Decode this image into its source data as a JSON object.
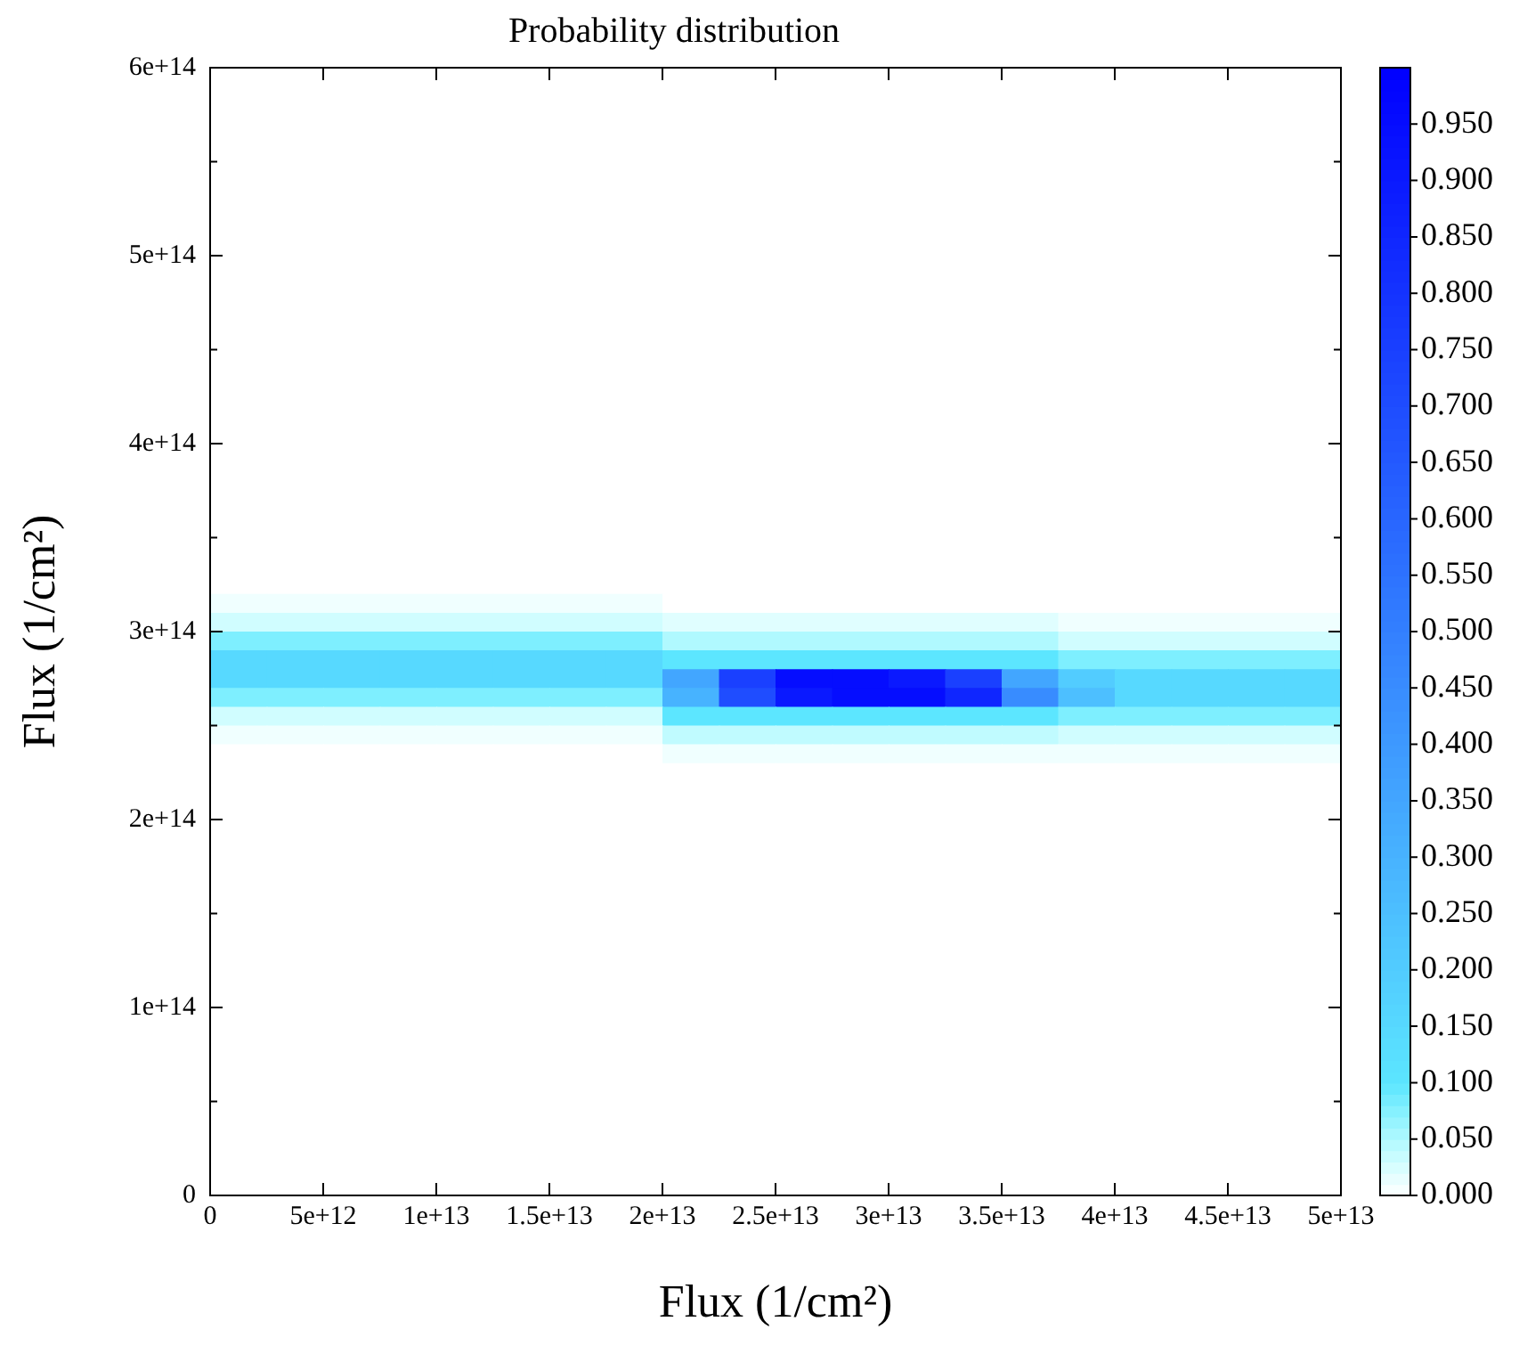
{
  "chart_data": {
    "type": "heatmap",
    "title": "Probability distribution",
    "xlabel": "Flux (1/cm²)",
    "ylabel": "Flux (1/cm²)",
    "x": [
      1250000000000.0,
      3750000000000.0,
      6250000000000.0,
      8750000000000.0,
      11250000000000.0,
      13750000000000.0,
      16250000000000.0,
      18750000000000.0,
      21250000000000.0,
      23750000000000.0,
      26250000000000.0,
      28750000000000.0,
      31250000000000.0,
      33750000000000.0,
      36250000000000.0,
      38750000000000.0,
      41250000000000.0,
      43750000000000.0,
      46250000000000.0,
      48750000000000.0
    ],
    "xlim": [
      0,
      50000000000000.0
    ],
    "xticks": [
      {
        "value": 0,
        "label": "0"
      },
      {
        "value": 5000000000000.0,
        "label": "5e+12"
      },
      {
        "value": 10000000000000.0,
        "label": "1e+13"
      },
      {
        "value": 15000000000000.0,
        "label": "1.5e+13"
      },
      {
        "value": 20000000000000.0,
        "label": "2e+13"
      },
      {
        "value": 25000000000000.0,
        "label": "2.5e+13"
      },
      {
        "value": 30000000000000.0,
        "label": "3e+13"
      },
      {
        "value": 35000000000000.0,
        "label": "3.5e+13"
      },
      {
        "value": 40000000000000.0,
        "label": "4e+13"
      },
      {
        "value": 45000000000000.0,
        "label": "4.5e+13"
      },
      {
        "value": 50000000000000.0,
        "label": "5e+13"
      }
    ],
    "ylim": [
      0,
      600000000000000.0
    ],
    "yticks": [
      {
        "value": 0,
        "label": "0"
      },
      {
        "value": 50000000000000.0,
        "label": null
      },
      {
        "value": 100000000000000.0,
        "label": "1e+14"
      },
      {
        "value": 150000000000000.0,
        "label": null
      },
      {
        "value": 200000000000000.0,
        "label": "2e+14"
      },
      {
        "value": 250000000000000.0,
        "label": null
      },
      {
        "value": 300000000000000.0,
        "label": "3e+14"
      },
      {
        "value": 350000000000000.0,
        "label": null
      },
      {
        "value": 400000000000000.0,
        "label": "4e+14"
      },
      {
        "value": 450000000000000.0,
        "label": null
      },
      {
        "value": 500000000000000.0,
        "label": "5e+14"
      },
      {
        "value": 550000000000000.0,
        "label": null
      },
      {
        "value": 600000000000000.0,
        "label": "6e+14"
      }
    ],
    "clim": [
      0,
      1
    ],
    "cticks": [
      {
        "value": 0,
        "label": "0.000"
      },
      {
        "value": 0.05,
        "label": "0.050"
      },
      {
        "value": 0.1,
        "label": "0.100"
      },
      {
        "value": 0.15,
        "label": "0.150"
      },
      {
        "value": 0.2,
        "label": "0.200"
      },
      {
        "value": 0.25,
        "label": "0.250"
      },
      {
        "value": 0.3,
        "label": "0.300"
      },
      {
        "value": 0.35,
        "label": "0.350"
      },
      {
        "value": 0.4,
        "label": "0.400"
      },
      {
        "value": 0.45,
        "label": "0.450"
      },
      {
        "value": 0.5,
        "label": "0.500"
      },
      {
        "value": 0.55,
        "label": "0.550"
      },
      {
        "value": 0.6,
        "label": "0.600"
      },
      {
        "value": 0.65,
        "label": "0.650"
      },
      {
        "value": 0.7,
        "label": "0.700"
      },
      {
        "value": 0.75,
        "label": "0.750"
      },
      {
        "value": 0.8,
        "label": "0.800"
      },
      {
        "value": 0.85,
        "label": "0.850"
      },
      {
        "value": 0.9,
        "label": "0.900"
      },
      {
        "value": 0.95,
        "label": "0.950"
      }
    ],
    "legend": false,
    "cells": [
      [
        0,
        0,
        0,
        0,
        0,
        0,
        0,
        0,
        0,
        0,
        0,
        0,
        0,
        0,
        0,
        0,
        0,
        0,
        0,
        0
      ],
      [
        0,
        0,
        0,
        0,
        0,
        0,
        0,
        0,
        0,
        0,
        0,
        0,
        0,
        0,
        0,
        0,
        0,
        0,
        0,
        0
      ],
      [
        0,
        0,
        0,
        0,
        0,
        0,
        0,
        0,
        0,
        0,
        0,
        0,
        0,
        0,
        0,
        0,
        0,
        0,
        0,
        0
      ],
      [
        0,
        0,
        0,
        0,
        0,
        0,
        0,
        0,
        0,
        0,
        0,
        0,
        0,
        0,
        0,
        0,
        0,
        0,
        0,
        0
      ],
      [
        0,
        0,
        0,
        0,
        0,
        0,
        0,
        0,
        0,
        0,
        0,
        0,
        0,
        0,
        0,
        0,
        0,
        0,
        0,
        0
      ],
      [
        0,
        0,
        0,
        0,
        0,
        0,
        0,
        0,
        0,
        0,
        0,
        0,
        0,
        0,
        0,
        0,
        0,
        0,
        0,
        0
      ],
      [
        0,
        0,
        0,
        0,
        0,
        0,
        0,
        0,
        0,
        0,
        0,
        0,
        0,
        0,
        0,
        0,
        0,
        0,
        0,
        0
      ],
      [
        0,
        0,
        0,
        0,
        0,
        0,
        0,
        0,
        0,
        0,
        0,
        0,
        0,
        0,
        0,
        0,
        0,
        0,
        0,
        0
      ],
      [
        0,
        0,
        0,
        0,
        0,
        0,
        0,
        0,
        0,
        0,
        0,
        0,
        0,
        0,
        0,
        0,
        0,
        0,
        0,
        0
      ],
      [
        0,
        0,
        0,
        0,
        0,
        0,
        0,
        0,
        0,
        0,
        0,
        0,
        0,
        0,
        0,
        0,
        0,
        0,
        0,
        0
      ],
      [
        0,
        0,
        0,
        0,
        0,
        0,
        0,
        0,
        0,
        0,
        0,
        0,
        0,
        0,
        0,
        0,
        0,
        0,
        0,
        0
      ],
      [
        0,
        0,
        0,
        0,
        0,
        0,
        0,
        0,
        0,
        0,
        0,
        0,
        0,
        0,
        0,
        0,
        0,
        0,
        0,
        0
      ],
      [
        0,
        0,
        0,
        0,
        0,
        0,
        0,
        0,
        0,
        0,
        0,
        0,
        0,
        0,
        0,
        0,
        0,
        0,
        0,
        0
      ],
      [
        0,
        0,
        0,
        0,
        0,
        0,
        0,
        0,
        0,
        0,
        0,
        0,
        0,
        0,
        0,
        0,
        0,
        0,
        0,
        0
      ],
      [
        0,
        0,
        0,
        0,
        0,
        0,
        0,
        0,
        0,
        0,
        0,
        0,
        0,
        0,
        0,
        0,
        0,
        0,
        0,
        0
      ],
      [
        0,
        0,
        0,
        0,
        0,
        0,
        0,
        0,
        0,
        0,
        0,
        0,
        0,
        0,
        0,
        0,
        0,
        0,
        0,
        0
      ],
      [
        0,
        0,
        0,
        0,
        0,
        0,
        0,
        0,
        0,
        0,
        0,
        0,
        0,
        0,
        0,
        0,
        0,
        0,
        0,
        0
      ],
      [
        0,
        0,
        0,
        0,
        0,
        0,
        0,
        0,
        0,
        0,
        0,
        0,
        0,
        0,
        0,
        0,
        0,
        0,
        0,
        0
      ],
      [
        0,
        0,
        0,
        0,
        0,
        0,
        0,
        0,
        0,
        0,
        0,
        0,
        0,
        0,
        0,
        0,
        0,
        0,
        0,
        0
      ],
      [
        0,
        0,
        0,
        0,
        0,
        0,
        0,
        0,
        0,
        0,
        0,
        0,
        0,
        0,
        0,
        0,
        0,
        0,
        0,
        0
      ],
      [
        0,
        0,
        0,
        0,
        0,
        0,
        0,
        0,
        0,
        0,
        0,
        0,
        0,
        0,
        0,
        0,
        0,
        0,
        0,
        0
      ],
      [
        0,
        0,
        0,
        0,
        0,
        0,
        0,
        0,
        0,
        0,
        0,
        0,
        0,
        0,
        0,
        0,
        0,
        0,
        0,
        0
      ],
      [
        0,
        0,
        0,
        0,
        0,
        0,
        0,
        0,
        0,
        0,
        0,
        0,
        0,
        0,
        0,
        0,
        0,
        0,
        0,
        0
      ],
      [
        0,
        0,
        0,
        0,
        0,
        0,
        0,
        0,
        0,
        0,
        0,
        0,
        0,
        0,
        0,
        0,
        0,
        0,
        0,
        0
      ],
      [
        0,
        0,
        0,
        0,
        0,
        0,
        0,
        0,
        0,
        0,
        0,
        0,
        0,
        0,
        0,
        0,
        0,
        0,
        0,
        0
      ],
      [
        0,
        0,
        0,
        0,
        0,
        0,
        0,
        0,
        0,
        0,
        0,
        0,
        0,
        0,
        0,
        0,
        0,
        0,
        0,
        0
      ],
      [
        0,
        0,
        0,
        0,
        0,
        0,
        0,
        0,
        0,
        0,
        0,
        0,
        0,
        0,
        0,
        0,
        0,
        0,
        0,
        0
      ],
      [
        0,
        0,
        0,
        0,
        0,
        0,
        0,
        0,
        0,
        0,
        0,
        0,
        0,
        0,
        0,
        0,
        0,
        0,
        0,
        0
      ],
      [
        0.01,
        0.01,
        0.01,
        0.01,
        0.01,
        0.01,
        0.01,
        0.01,
        0,
        0,
        0,
        0,
        0,
        0,
        0,
        0,
        0,
        0,
        0,
        0
      ],
      [
        0.03,
        0.03,
        0.03,
        0.03,
        0.03,
        0.03,
        0.03,
        0.03,
        0.02,
        0.02,
        0.02,
        0.02,
        0.02,
        0.02,
        0.02,
        0.01,
        0.01,
        0.01,
        0.01,
        0.01
      ],
      [
        0.08,
        0.08,
        0.08,
        0.08,
        0.08,
        0.08,
        0.08,
        0.08,
        0.05,
        0.05,
        0.05,
        0.05,
        0.05,
        0.05,
        0.05,
        0.03,
        0.03,
        0.03,
        0.03,
        0.03
      ],
      [
        0.15,
        0.15,
        0.15,
        0.15,
        0.15,
        0.15,
        0.15,
        0.15,
        0.1,
        0.1,
        0.1,
        0.1,
        0.1,
        0.1,
        0.1,
        0.08,
        0.08,
        0.08,
        0.08,
        0.08
      ],
      [
        0.15,
        0.15,
        0.15,
        0.15,
        0.15,
        0.15,
        0.15,
        0.15,
        0.35,
        0.75,
        0.95,
        0.95,
        0.9,
        0.75,
        0.35,
        0.2,
        0.15,
        0.15,
        0.15,
        0.15
      ],
      [
        0.08,
        0.08,
        0.08,
        0.08,
        0.08,
        0.08,
        0.08,
        0.08,
        0.3,
        0.7,
        0.9,
        0.95,
        0.95,
        0.85,
        0.45,
        0.25,
        0.15,
        0.15,
        0.15,
        0.15
      ],
      [
        0.03,
        0.03,
        0.03,
        0.03,
        0.03,
        0.03,
        0.03,
        0.03,
        0.1,
        0.1,
        0.1,
        0.1,
        0.1,
        0.1,
        0.1,
        0.08,
        0.08,
        0.08,
        0.08,
        0.08
      ],
      [
        0.01,
        0.01,
        0.01,
        0.01,
        0.01,
        0.01,
        0.01,
        0.01,
        0.04,
        0.04,
        0.04,
        0.04,
        0.04,
        0.04,
        0.04,
        0.03,
        0.03,
        0.03,
        0.03,
        0.03
      ],
      [
        0,
        0,
        0,
        0,
        0,
        0,
        0,
        0,
        0.01,
        0.01,
        0.01,
        0.01,
        0.01,
        0.01,
        0.01,
        0.01,
        0.01,
        0.01,
        0.01,
        0.01
      ],
      [
        0,
        0,
        0,
        0,
        0,
        0,
        0,
        0,
        0,
        0,
        0,
        0,
        0,
        0,
        0,
        0,
        0,
        0,
        0,
        0
      ],
      [
        0,
        0,
        0,
        0,
        0,
        0,
        0,
        0,
        0,
        0,
        0,
        0,
        0,
        0,
        0,
        0,
        0,
        0,
        0,
        0
      ],
      [
        0,
        0,
        0,
        0,
        0,
        0,
        0,
        0,
        0,
        0,
        0,
        0,
        0,
        0,
        0,
        0,
        0,
        0,
        0,
        0
      ],
      [
        0,
        0,
        0,
        0,
        0,
        0,
        0,
        0,
        0,
        0,
        0,
        0,
        0,
        0,
        0,
        0,
        0,
        0,
        0,
        0
      ],
      [
        0,
        0,
        0,
        0,
        0,
        0,
        0,
        0,
        0,
        0,
        0,
        0,
        0,
        0,
        0,
        0,
        0,
        0,
        0,
        0
      ],
      [
        0,
        0,
        0,
        0,
        0,
        0,
        0,
        0,
        0,
        0,
        0,
        0,
        0,
        0,
        0,
        0,
        0,
        0,
        0,
        0
      ],
      [
        0,
        0,
        0,
        0,
        0,
        0,
        0,
        0,
        0,
        0,
        0,
        0,
        0,
        0,
        0,
        0,
        0,
        0,
        0,
        0
      ],
      [
        0,
        0,
        0,
        0,
        0,
        0,
        0,
        0,
        0,
        0,
        0,
        0,
        0,
        0,
        0,
        0,
        0,
        0,
        0,
        0
      ],
      [
        0,
        0,
        0,
        0,
        0,
        0,
        0,
        0,
        0,
        0,
        0,
        0,
        0,
        0,
        0,
        0,
        0,
        0,
        0,
        0
      ],
      [
        0,
        0,
        0,
        0,
        0,
        0,
        0,
        0,
        0,
        0,
        0,
        0,
        0,
        0,
        0,
        0,
        0,
        0,
        0,
        0
      ],
      [
        0,
        0,
        0,
        0,
        0,
        0,
        0,
        0,
        0,
        0,
        0,
        0,
        0,
        0,
        0,
        0,
        0,
        0,
        0,
        0
      ],
      [
        0,
        0,
        0,
        0,
        0,
        0,
        0,
        0,
        0,
        0,
        0,
        0,
        0,
        0,
        0,
        0,
        0,
        0,
        0,
        0
      ],
      [
        0,
        0,
        0,
        0,
        0,
        0,
        0,
        0,
        0,
        0,
        0,
        0,
        0,
        0,
        0,
        0,
        0,
        0,
        0,
        0
      ],
      [
        0,
        0,
        0,
        0,
        0,
        0,
        0,
        0,
        0,
        0,
        0,
        0,
        0,
        0,
        0,
        0,
        0,
        0,
        0,
        0
      ],
      [
        0,
        0,
        0,
        0,
        0,
        0,
        0,
        0,
        0,
        0,
        0,
        0,
        0,
        0,
        0,
        0,
        0,
        0,
        0,
        0
      ],
      [
        0,
        0,
        0,
        0,
        0,
        0,
        0,
        0,
        0,
        0,
        0,
        0,
        0,
        0,
        0,
        0,
        0,
        0,
        0,
        0
      ],
      [
        0,
        0,
        0,
        0,
        0,
        0,
        0,
        0,
        0,
        0,
        0,
        0,
        0,
        0,
        0,
        0,
        0,
        0,
        0,
        0
      ],
      [
        0,
        0,
        0,
        0,
        0,
        0,
        0,
        0,
        0,
        0,
        0,
        0,
        0,
        0,
        0,
        0,
        0,
        0,
        0,
        0
      ],
      [
        0,
        0,
        0,
        0,
        0,
        0,
        0,
        0,
        0,
        0,
        0,
        0,
        0,
        0,
        0,
        0,
        0,
        0,
        0,
        0
      ],
      [
        0,
        0,
        0,
        0,
        0,
        0,
        0,
        0,
        0,
        0,
        0,
        0,
        0,
        0,
        0,
        0,
        0,
        0,
        0,
        0
      ],
      [
        0,
        0,
        0,
        0,
        0,
        0,
        0,
        0,
        0,
        0,
        0,
        0,
        0,
        0,
        0,
        0,
        0,
        0,
        0,
        0
      ],
      [
        0,
        0,
        0,
        0,
        0,
        0,
        0,
        0,
        0,
        0,
        0,
        0,
        0,
        0,
        0,
        0,
        0,
        0,
        0,
        0
      ],
      [
        0,
        0,
        0,
        0,
        0,
        0,
        0,
        0,
        0,
        0,
        0,
        0,
        0,
        0,
        0,
        0,
        0,
        0,
        0,
        0
      ]
    ]
  }
}
